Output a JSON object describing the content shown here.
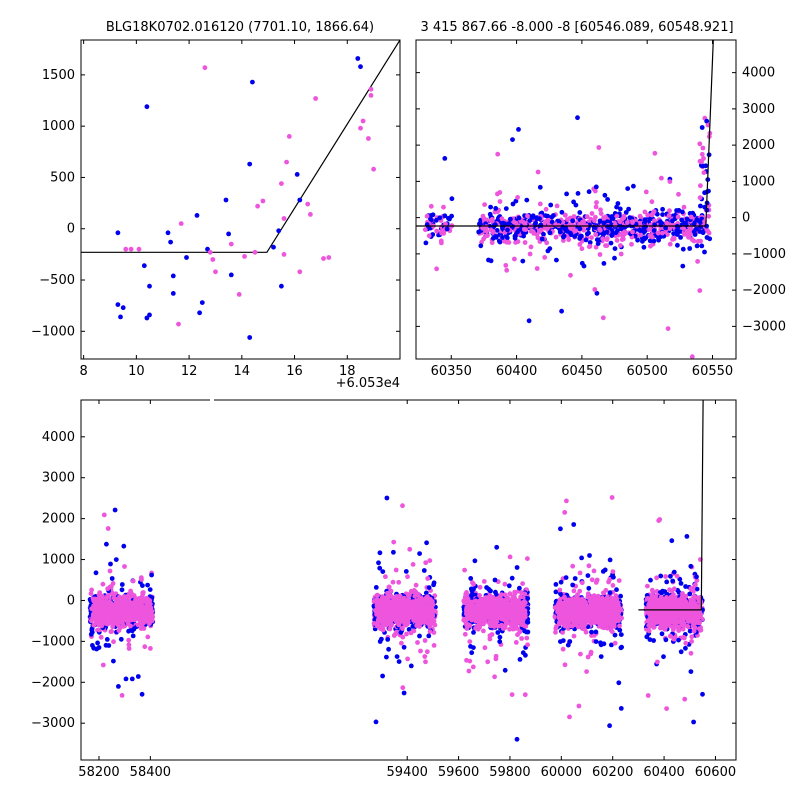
{
  "figure": {
    "background": "#ffffff",
    "colors": {
      "series_a": "#0000ee",
      "series_b": "#ee55dd",
      "model": "#000000"
    }
  },
  "chart_data": [
    {
      "id": "zoom",
      "type": "scatter",
      "title": "BLG18K0702.016120 (7701.10, 1866.64)",
      "xlabel": "",
      "ylabel": "",
      "x_offset_label": "+6.053e4",
      "xlim": [
        7.9,
        20.0
      ],
      "ylim": [
        -1270,
        1840
      ],
      "xticks": [
        8,
        10,
        12,
        14,
        16,
        18
      ],
      "yticks": [
        -1000,
        -500,
        0,
        500,
        1000,
        1500
      ],
      "series": [
        {
          "color": "#0000ee",
          "points": [
            [
              9.3,
              -40
            ],
            [
              9.3,
              -740
            ],
            [
              9.4,
              -860
            ],
            [
              9.5,
              -770
            ],
            [
              10.4,
              1190
            ],
            [
              10.3,
              -360
            ],
            [
              10.5,
              -560
            ],
            [
              10.4,
              -870
            ],
            [
              10.5,
              -840
            ],
            [
              11.2,
              -40
            ],
            [
              11.3,
              -130
            ],
            [
              11.4,
              -460
            ],
            [
              11.4,
              -630
            ],
            [
              11.9,
              -280
            ],
            [
              12.3,
              130
            ],
            [
              12.4,
              -820
            ],
            [
              12.5,
              -720
            ],
            [
              12.7,
              -200
            ],
            [
              13.4,
              280
            ],
            [
              13.5,
              -50
            ],
            [
              13.6,
              -450
            ],
            [
              14.3,
              630
            ],
            [
              14.4,
              1430
            ],
            [
              14.3,
              -1060
            ],
            [
              15.2,
              -180
            ],
            [
              15.4,
              -20
            ],
            [
              15.5,
              -560
            ],
            [
              16.1,
              530
            ],
            [
              16.2,
              280
            ],
            [
              18.4,
              1660
            ],
            [
              18.5,
              1580
            ]
          ]
        },
        {
          "color": "#ee55dd",
          "points": [
            [
              9.6,
              -200
            ],
            [
              9.8,
              -200
            ],
            [
              10.1,
              -200
            ],
            [
              11.6,
              -930
            ],
            [
              11.7,
              50
            ],
            [
              12.6,
              1570
            ],
            [
              12.8,
              -230
            ],
            [
              12.9,
              -300
            ],
            [
              13.0,
              -420
            ],
            [
              13.6,
              -150
            ],
            [
              13.9,
              -640
            ],
            [
              14.1,
              -270
            ],
            [
              14.5,
              -230
            ],
            [
              14.6,
              220
            ],
            [
              14.8,
              270
            ],
            [
              15.5,
              440
            ],
            [
              15.6,
              100
            ],
            [
              15.6,
              -250
            ],
            [
              15.7,
              650
            ],
            [
              15.8,
              900
            ],
            [
              16.2,
              -420
            ],
            [
              16.5,
              240
            ],
            [
              16.6,
              140
            ],
            [
              16.8,
              1270
            ],
            [
              17.1,
              -290
            ],
            [
              17.3,
              -280
            ],
            [
              18.5,
              980
            ],
            [
              18.6,
              1050
            ],
            [
              18.8,
              880
            ],
            [
              18.9,
              1300
            ],
            [
              18.9,
              1360
            ],
            [
              19.0,
              580
            ]
          ]
        }
      ],
      "model_line": [
        [
          7.9,
          -230
        ],
        [
          14.95,
          -230
        ],
        [
          20.0,
          1840
        ]
      ]
    },
    {
      "id": "season",
      "type": "scatter",
      "title": "3 415 867.66 -8.000 -8 [60546.089, 60548.921]",
      "xlabel": "",
      "ylabel": "",
      "xlim": [
        60323,
        60568
      ],
      "ylim": [
        -3900,
        4900
      ],
      "xticks": [
        60350,
        60400,
        60450,
        60500,
        60550
      ],
      "yticks": [
        -3000,
        -2000,
        -1000,
        0,
        1000,
        2000,
        3000,
        4000
      ],
      "gap": [
        60351,
        60371
      ],
      "band": {
        "center": -250,
        "spread": 300,
        "outlier_spread": 1600
      },
      "model_line": [
        [
          60323,
          -230
        ],
        [
          60544.9,
          -230
        ],
        [
          60550.6,
          4900
        ]
      ]
    },
    {
      "id": "full",
      "type": "scatter",
      "title": "",
      "xlabel": "",
      "ylabel": "",
      "xlim": [
        58130,
        60680
      ],
      "ylim": [
        -3900,
        4900
      ],
      "xticks": [
        58200,
        58400,
        59400,
        59600,
        59800,
        60000,
        60200,
        60400,
        60600
      ],
      "yticks": [
        -3000,
        -2000,
        -1000,
        0,
        1000,
        2000,
        3000,
        4000
      ],
      "seasons": [
        [
          58165,
          58410
        ],
        [
          59270,
          59510
        ],
        [
          59620,
          59870
        ],
        [
          59975,
          60235
        ],
        [
          60330,
          60550
        ]
      ],
      "band": {
        "center": -250,
        "spread": 300,
        "outlier_spread": 1600
      },
      "model_line": [
        [
          60300,
          -230
        ],
        [
          60545,
          -230
        ],
        [
          60552,
          4900
        ]
      ]
    }
  ]
}
